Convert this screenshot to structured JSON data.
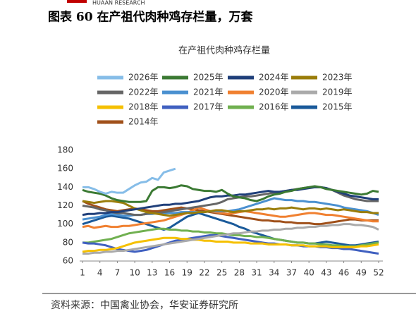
{
  "header": {
    "logo_text": "HUAAN RESEARCH",
    "title": "图表 60 在产祖代肉种鸡存栏量，万套"
  },
  "source": "资料来源：中国禽业协会，华安证券研究所",
  "chart_data": {
    "type": "line",
    "title": "在产祖代肉种鸡存栏量",
    "x": [
      1,
      2,
      3,
      4,
      5,
      6,
      7,
      8,
      9,
      10,
      11,
      12,
      13,
      14,
      15,
      16,
      17,
      18,
      19,
      20,
      21,
      22,
      23,
      24,
      25,
      26,
      27,
      28,
      29,
      30,
      31,
      32,
      33,
      34,
      35,
      36,
      37,
      38,
      39,
      40,
      41,
      42,
      43,
      44,
      45,
      46,
      47,
      48,
      49,
      50,
      51,
      52
    ],
    "xlim": [
      1,
      52
    ],
    "xticks": [
      1,
      4,
      7,
      10,
      13,
      16,
      19,
      22,
      25,
      28,
      31,
      34,
      37,
      40,
      43,
      46,
      49,
      52
    ],
    "ylim": [
      60,
      180
    ],
    "yticks": [
      60,
      80,
      100,
      120,
      140,
      160,
      180
    ],
    "series": [
      {
        "name": "2026年",
        "color": "#86bde8",
        "values": [
          140,
          140,
          138,
          135,
          133,
          135,
          134,
          134,
          138,
          142,
          145,
          146,
          150,
          148,
          156,
          158,
          160,
          null,
          null,
          null,
          null,
          null,
          null,
          null,
          null,
          null,
          null,
          null,
          null,
          null,
          null,
          null,
          null,
          null,
          null,
          null,
          null,
          null,
          null,
          null,
          null,
          null,
          null,
          null,
          null,
          null,
          null,
          null,
          null,
          null,
          null,
          null
        ]
      },
      {
        "name": "2025年",
        "color": "#3b7a33",
        "values": [
          137,
          135,
          134,
          133,
          131,
          128,
          126,
          125,
          124,
          124,
          124,
          125,
          136,
          140,
          140,
          139,
          140,
          142,
          141,
          138,
          137,
          136,
          136,
          135,
          137,
          133,
          130,
          129,
          128,
          126,
          125,
          127,
          130,
          132,
          133,
          135,
          136,
          138,
          139,
          140,
          141,
          140,
          138,
          137,
          136,
          135,
          134,
          133,
          132,
          133,
          136,
          135
        ]
      },
      {
        "name": "2024年",
        "color": "#1f3f7a",
        "values": [
          110,
          111,
          111,
          112,
          112,
          113,
          113,
          114,
          115,
          116,
          117,
          118,
          119,
          120,
          121,
          121,
          122,
          122,
          123,
          124,
          125,
          127,
          129,
          130,
          130,
          131,
          131,
          132,
          132,
          133,
          134,
          135,
          136,
          135,
          135,
          136,
          137,
          137,
          138,
          139,
          140,
          140,
          139,
          137,
          135,
          133,
          131,
          130,
          129,
          128,
          127,
          127
        ]
      },
      {
        "name": "2023年",
        "color": "#9a7d0a",
        "values": [
          125,
          124,
          123,
          124,
          125,
          125,
          124,
          123,
          120,
          117,
          115,
          113,
          112,
          111,
          110,
          109,
          110,
          111,
          112,
          112,
          113,
          113,
          114,
          115,
          115,
          114,
          113,
          114,
          114,
          115,
          116,
          116,
          117,
          116,
          117,
          117,
          118,
          117,
          116,
          117,
          117,
          116,
          117,
          116,
          115,
          116,
          115,
          114,
          113,
          113,
          112,
          112
        ]
      },
      {
        "name": "2022年",
        "color": "#666666",
        "values": [
          120,
          119,
          118,
          116,
          115,
          113,
          112,
          112,
          111,
          110,
          110,
          111,
          112,
          112,
          113,
          114,
          115,
          116,
          117,
          118,
          119,
          120,
          121,
          122,
          124,
          127,
          128,
          129,
          130,
          130,
          131,
          132,
          133,
          134,
          135,
          136,
          137,
          138,
          139,
          140,
          140,
          140,
          139,
          137,
          134,
          131,
          129,
          127,
          126,
          125,
          125,
          125
        ]
      },
      {
        "name": "2021年",
        "color": "#4a90d0",
        "values": [
          105,
          106,
          107,
          108,
          110,
          111,
          110,
          109,
          109,
          110,
          110,
          111,
          111,
          112,
          112,
          112,
          112,
          113,
          113,
          113,
          113,
          113,
          114,
          114,
          114,
          114,
          115,
          116,
          118,
          120,
          122,
          124,
          126,
          128,
          127,
          126,
          126,
          125,
          125,
          124,
          124,
          123,
          122,
          121,
          120,
          118,
          117,
          116,
          115,
          114,
          112,
          110
        ]
      },
      {
        "name": "2020年",
        "color": "#f08030",
        "values": [
          97,
          98,
          96,
          97,
          98,
          97,
          97,
          98,
          98,
          99,
          100,
          101,
          102,
          103,
          104,
          106,
          108,
          110,
          112,
          115,
          118,
          116,
          114,
          113,
          112,
          111,
          112,
          113,
          114,
          113,
          112,
          111,
          110,
          109,
          108,
          108,
          109,
          110,
          111,
          112,
          112,
          111,
          110,
          110,
          109,
          108,
          107,
          106,
          105,
          104,
          103,
          103
        ]
      },
      {
        "name": "2019年",
        "color": "#aaaaaa",
        "values": [
          68,
          68,
          69,
          69,
          70,
          70,
          71,
          71,
          72,
          73,
          74,
          75,
          76,
          77,
          78,
          79,
          80,
          81,
          82,
          83,
          84,
          85,
          86,
          87,
          88,
          89,
          90,
          90,
          91,
          92,
          92,
          93,
          93,
          94,
          94,
          95,
          95,
          96,
          96,
          97,
          97,
          98,
          98,
          99,
          99,
          100,
          100,
          99,
          99,
          98,
          97,
          94
        ]
      },
      {
        "name": "2018年",
        "color": "#f5c000",
        "values": [
          70,
          71,
          71,
          72,
          72,
          73,
          74,
          76,
          78,
          80,
          81,
          82,
          83,
          84,
          85,
          85,
          85,
          84,
          84,
          83,
          83,
          82,
          82,
          81,
          81,
          81,
          80,
          80,
          80,
          79,
          79,
          79,
          78,
          78,
          78,
          78,
          77,
          77,
          77,
          76,
          76,
          76,
          76,
          75,
          75,
          75,
          75,
          75,
          76,
          76,
          77,
          78
        ]
      },
      {
        "name": "2017年",
        "color": "#4060c0",
        "values": [
          80,
          79,
          79,
          78,
          77,
          75,
          73,
          72,
          71,
          70,
          71,
          72,
          74,
          76,
          78,
          80,
          82,
          83,
          84,
          85,
          86,
          87,
          88,
          88,
          87,
          86,
          85,
          84,
          83,
          82,
          81,
          80,
          79,
          79,
          78,
          78,
          77,
          77,
          76,
          76,
          76,
          75,
          75,
          74,
          74,
          73,
          73,
          72,
          71,
          70,
          69,
          68
        ]
      },
      {
        "name": "2016年",
        "color": "#70b050",
        "values": [
          80,
          80,
          81,
          82,
          83,
          84,
          86,
          88,
          90,
          91,
          92,
          93,
          94,
          95,
          95,
          94,
          94,
          93,
          93,
          92,
          92,
          91,
          91,
          90,
          90,
          89,
          88,
          88,
          87,
          87,
          86,
          86,
          85,
          84,
          83,
          82,
          81,
          80,
          80,
          79,
          79,
          78,
          78,
          77,
          77,
          76,
          76,
          76,
          77,
          78,
          79,
          80
        ]
      },
      {
        "name": "2015年",
        "color": "#1a5a9a",
        "values": [
          100,
          102,
          104,
          106,
          108,
          109,
          108,
          107,
          106,
          104,
          102,
          100,
          98,
          96,
          94,
          96,
          100,
          104,
          108,
          110,
          112,
          110,
          108,
          106,
          104,
          102,
          100,
          97,
          95,
          92,
          90,
          88,
          86,
          84,
          83,
          82,
          81,
          80,
          80,
          79,
          79,
          80,
          81,
          80,
          79,
          78,
          77,
          77,
          78,
          79,
          80,
          81
        ]
      },
      {
        "name": "2014年",
        "color": "#a0501a",
        "values": [
          125,
          122,
          120,
          118,
          116,
          115,
          114,
          115,
          116,
          117,
          116,
          115,
          114,
          114,
          115,
          116,
          117,
          118,
          117,
          116,
          115,
          114,
          113,
          112,
          111,
          110,
          109,
          108,
          107,
          106,
          105,
          104,
          104,
          103,
          103,
          102,
          102,
          101,
          101,
          101,
          100,
          100,
          101,
          102,
          103,
          104,
          105,
          105,
          104,
          104,
          104,
          104
        ]
      }
    ]
  }
}
